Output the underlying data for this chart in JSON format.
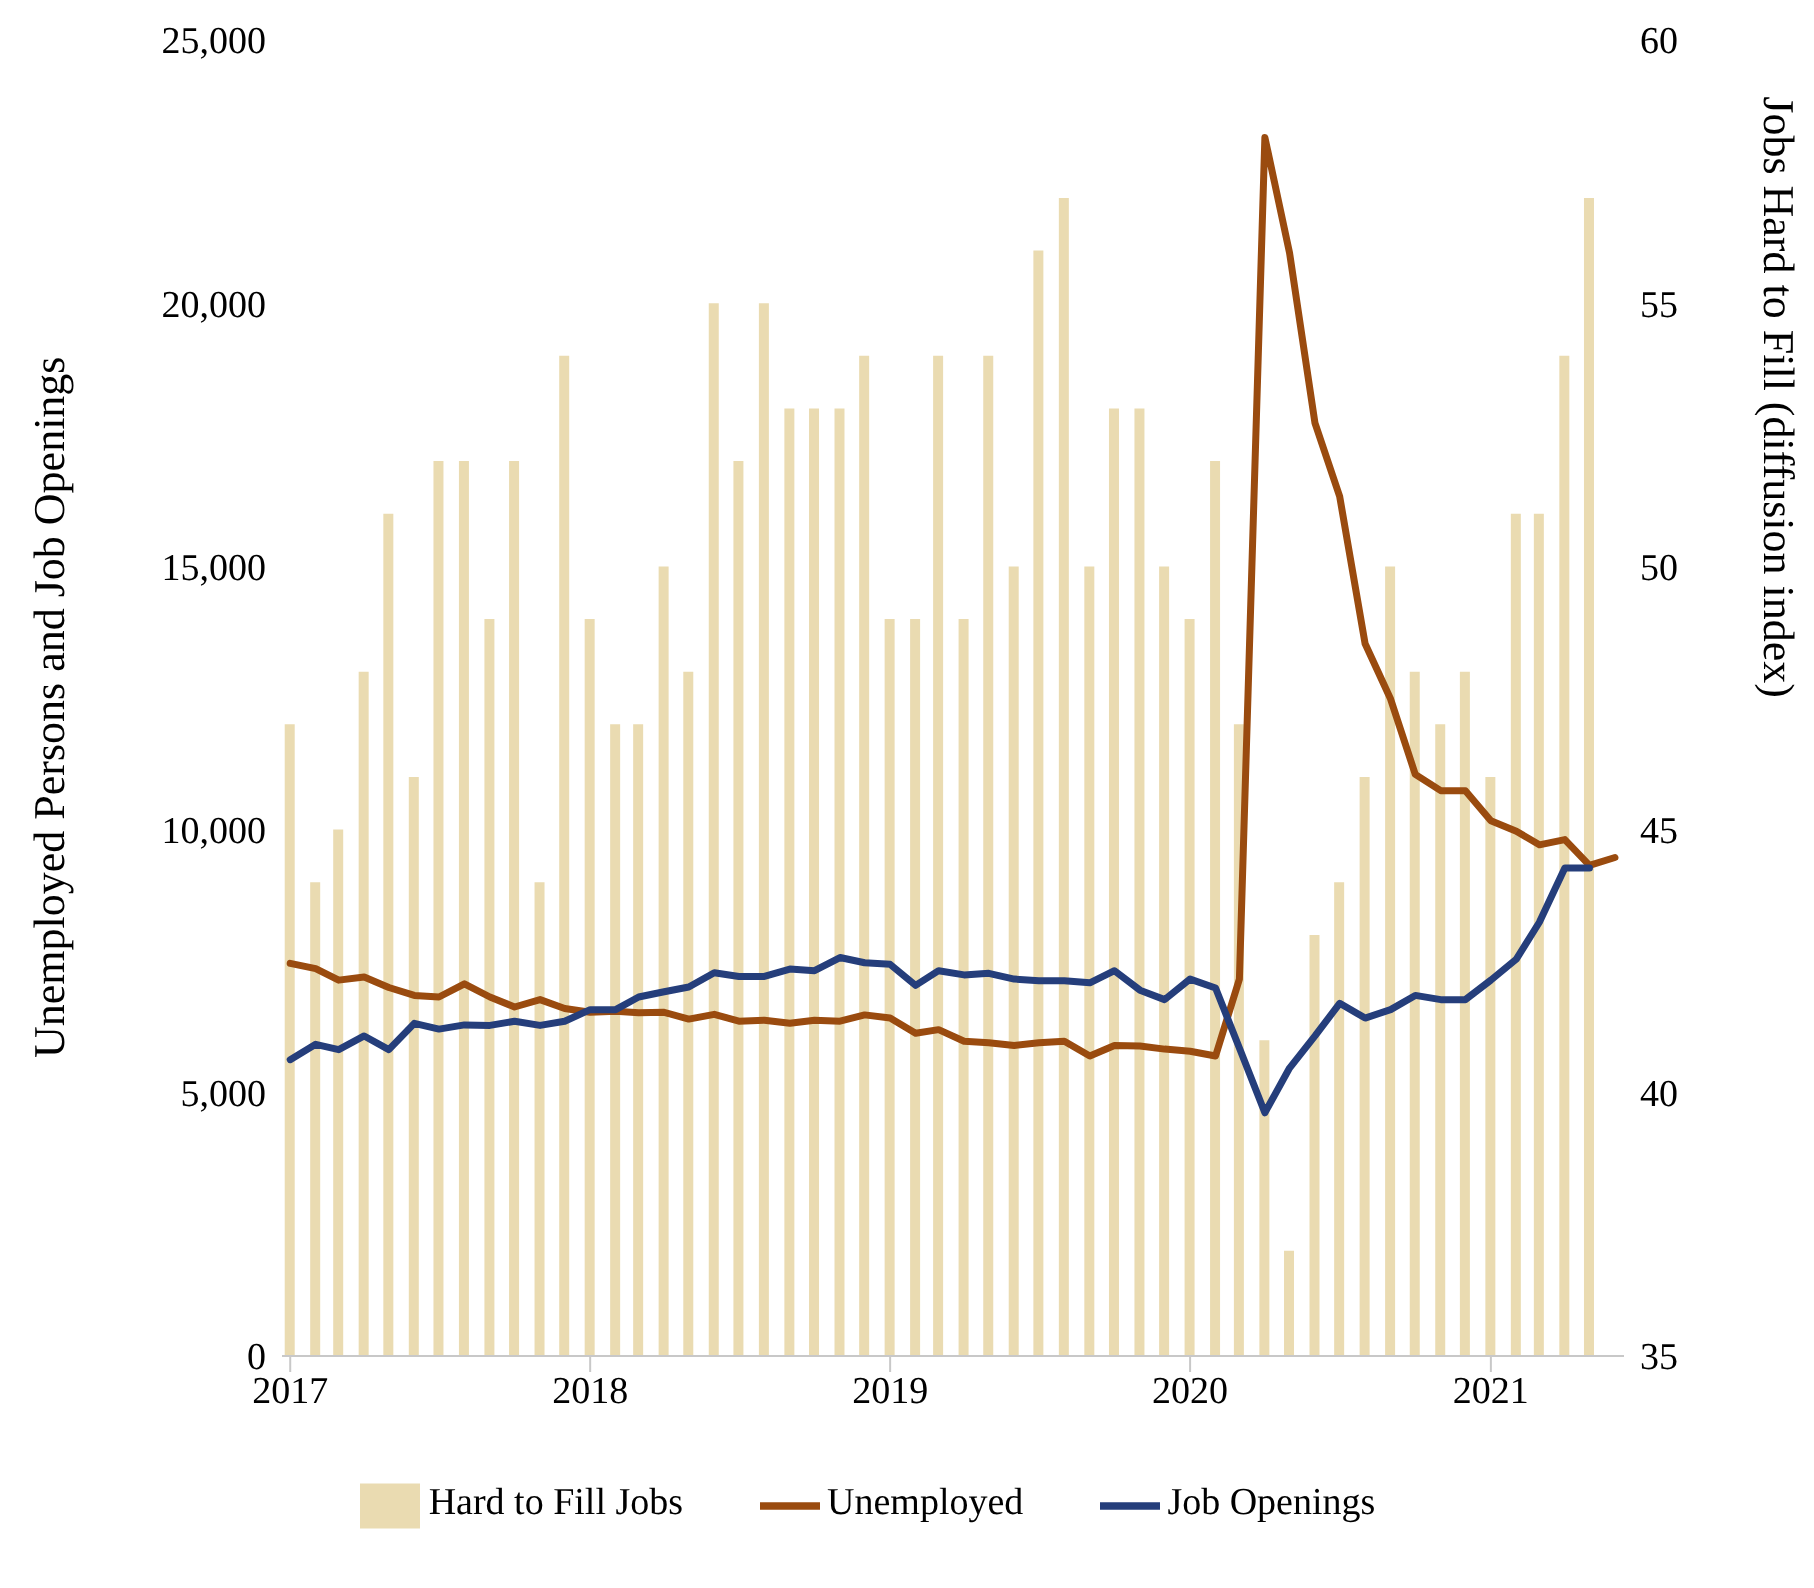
{
  "chart_data": {
    "type": "line",
    "ylabel": "Unemployed Persons and Job Openings",
    "y2label": "Jobs Hard to Fill (diffusion index)",
    "x": [
      "2017-01",
      "2017-02",
      "2017-03",
      "2017-04",
      "2017-05",
      "2017-06",
      "2017-07",
      "2017-08",
      "2017-09",
      "2017-10",
      "2017-11",
      "2017-12",
      "2018-01",
      "2018-02",
      "2018-03",
      "2018-04",
      "2018-05",
      "2018-06",
      "2018-07",
      "2018-08",
      "2018-09",
      "2018-10",
      "2018-11",
      "2018-12",
      "2019-01",
      "2019-02",
      "2019-03",
      "2019-04",
      "2019-05",
      "2019-06",
      "2019-07",
      "2019-08",
      "2019-09",
      "2019-10",
      "2019-11",
      "2019-12",
      "2020-01",
      "2020-02",
      "2020-03",
      "2020-04",
      "2020-05",
      "2020-06",
      "2020-07",
      "2020-08",
      "2020-09",
      "2020-10",
      "2020-11",
      "2020-12",
      "2021-01",
      "2021-02",
      "2021-03",
      "2021-04",
      "2021-05",
      "2021-06"
    ],
    "xlim": [
      "2016-12-22",
      "2021-06-12"
    ],
    "xticks": [
      {
        "value": "2017-01",
        "label": "2017"
      },
      {
        "value": "2018-01",
        "label": "2018"
      },
      {
        "value": "2019-01",
        "label": "2019"
      },
      {
        "value": "2020-01",
        "label": "2020"
      },
      {
        "value": "2021-01",
        "label": "2021"
      }
    ],
    "ylim": [
      0,
      25000
    ],
    "yticks": [
      {
        "value": 0,
        "label": "0"
      },
      {
        "value": 5000,
        "label": "5,000"
      },
      {
        "value": 10000,
        "label": "10,000"
      },
      {
        "value": 15000,
        "label": "15,000"
      },
      {
        "value": 20000,
        "label": "20,000"
      },
      {
        "value": 25000,
        "label": "25,000"
      }
    ],
    "y2lim": [
      35,
      60
    ],
    "y2ticks": [
      35,
      40,
      45,
      50,
      55,
      60
    ],
    "legend": "bottom",
    "series": [
      {
        "name": "Hard to Fill Jobs",
        "type": "bar",
        "axis": "y2",
        "color": "#eadbb1",
        "values": [
          47,
          44,
          45,
          48,
          51,
          46,
          52,
          52,
          49,
          52,
          44,
          54,
          49,
          47,
          47,
          50,
          48,
          55,
          52,
          55,
          53,
          53,
          53,
          54,
          49,
          49,
          54,
          49,
          54,
          50,
          56,
          57,
          50,
          53,
          53,
          50,
          49,
          52,
          47,
          41,
          37,
          43,
          44,
          46,
          50,
          48,
          47,
          48,
          46,
          51,
          51,
          54,
          57,
          null
        ]
      },
      {
        "name": "Unemployed",
        "color": "#9a4b0f",
        "values": [
          7460,
          7360,
          7140,
          7200,
          7000,
          6850,
          6820,
          7070,
          6820,
          6630,
          6770,
          6600,
          6530,
          6550,
          6520,
          6530,
          6400,
          6490,
          6360,
          6380,
          6320,
          6380,
          6360,
          6480,
          6420,
          6130,
          6200,
          5980,
          5950,
          5900,
          5950,
          5980,
          5700,
          5900,
          5890,
          5830,
          5790,
          5700,
          7160,
          23150,
          20960,
          17720,
          16330,
          13530,
          12480,
          11050,
          10740,
          10740,
          10170,
          9970,
          9710,
          9810,
          9320,
          9470
        ]
      },
      {
        "name": "Job Openings",
        "color": "#253e7b",
        "values": [
          5630,
          5920,
          5820,
          6080,
          5820,
          6320,
          6210,
          6290,
          6280,
          6360,
          6280,
          6360,
          6580,
          6580,
          6820,
          6920,
          7010,
          7280,
          7210,
          7210,
          7350,
          7320,
          7570,
          7470,
          7440,
          7040,
          7320,
          7240,
          7270,
          7160,
          7130,
          7130,
          7090,
          7320,
          6950,
          6770,
          7160,
          6990,
          5850,
          4620,
          5470,
          6080,
          6700,
          6420,
          6580,
          6850,
          6770,
          6770,
          7140,
          7540,
          8240,
          9270,
          9270,
          null
        ]
      }
    ]
  }
}
